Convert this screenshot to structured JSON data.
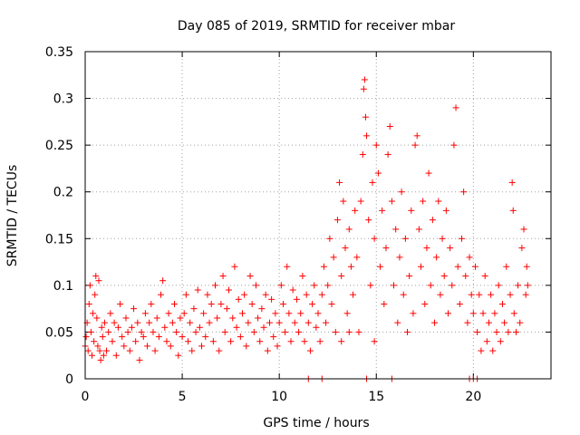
{
  "chart_data": {
    "type": "scatter",
    "title": "Day 085 of 2019, SRMTID for receiver mbar",
    "xlabel": "GPS time / hours",
    "ylabel": "SRMTID / TECUs",
    "xlim": [
      0,
      24
    ],
    "ylim": [
      0,
      0.35
    ],
    "xticks": [
      0,
      5,
      10,
      15,
      20
    ],
    "xtick_labels": [
      "0",
      "5",
      "10",
      "15",
      "20"
    ],
    "yticks": [
      0,
      0.05,
      0.1,
      0.15,
      0.2,
      0.25,
      0.3,
      0.35
    ],
    "ytick_labels": [
      "0",
      "0.05",
      "0.1",
      "0.15",
      "0.2",
      "0.25",
      "0.3",
      "0.35"
    ],
    "grid": true,
    "marker": "+",
    "color": "#ff0000",
    "series": [
      {
        "name": "SRMTID",
        "points": [
          [
            0.0,
            0.035
          ],
          [
            0.05,
            0.045
          ],
          [
            0.1,
            0.06
          ],
          [
            0.15,
            0.03
          ],
          [
            0.2,
            0.08
          ],
          [
            0.25,
            0.1
          ],
          [
            0.3,
            0.05
          ],
          [
            0.35,
            0.025
          ],
          [
            0.4,
            0.07
          ],
          [
            0.45,
            0.04
          ],
          [
            0.5,
            0.09
          ],
          [
            0.55,
            0.11
          ],
          [
            0.6,
            0.065
          ],
          [
            0.65,
            0.035
          ],
          [
            0.7,
            0.105
          ],
          [
            0.75,
            0.03
          ],
          [
            0.8,
            0.02
          ],
          [
            0.85,
            0.055
          ],
          [
            0.9,
            0.045
          ],
          [
            0.95,
            0.025
          ],
          [
            1.0,
            0.06
          ],
          [
            1.1,
            0.03
          ],
          [
            1.2,
            0.05
          ],
          [
            1.3,
            0.07
          ],
          [
            1.4,
            0.04
          ],
          [
            1.5,
            0.06
          ],
          [
            1.6,
            0.025
          ],
          [
            1.7,
            0.055
          ],
          [
            1.8,
            0.08
          ],
          [
            1.9,
            0.045
          ],
          [
            2.0,
            0.035
          ],
          [
            2.1,
            0.065
          ],
          [
            2.2,
            0.05
          ],
          [
            2.3,
            0.03
          ],
          [
            2.4,
            0.055
          ],
          [
            2.5,
            0.075
          ],
          [
            2.6,
            0.04
          ],
          [
            2.7,
            0.06
          ],
          [
            2.8,
            0.02
          ],
          [
            2.9,
            0.05
          ],
          [
            3.0,
            0.045
          ],
          [
            3.1,
            0.07
          ],
          [
            3.2,
            0.035
          ],
          [
            3.3,
            0.06
          ],
          [
            3.4,
            0.08
          ],
          [
            3.5,
            0.05
          ],
          [
            3.6,
            0.03
          ],
          [
            3.7,
            0.065
          ],
          [
            3.8,
            0.045
          ],
          [
            3.9,
            0.09
          ],
          [
            4.0,
            0.105
          ],
          [
            4.1,
            0.055
          ],
          [
            4.2,
            0.04
          ],
          [
            4.3,
            0.07
          ],
          [
            4.4,
            0.035
          ],
          [
            4.5,
            0.06
          ],
          [
            4.6,
            0.08
          ],
          [
            4.7,
            0.05
          ],
          [
            4.8,
            0.025
          ],
          [
            4.9,
            0.065
          ],
          [
            5.0,
            0.045
          ],
          [
            5.1,
            0.07
          ],
          [
            5.2,
            0.09
          ],
          [
            5.3,
            0.04
          ],
          [
            5.4,
            0.06
          ],
          [
            5.5,
            0.03
          ],
          [
            5.6,
            0.075
          ],
          [
            5.7,
            0.05
          ],
          [
            5.8,
            0.095
          ],
          [
            5.9,
            0.055
          ],
          [
            6.0,
            0.035
          ],
          [
            6.1,
            0.07
          ],
          [
            6.2,
            0.045
          ],
          [
            6.3,
            0.09
          ],
          [
            6.4,
            0.06
          ],
          [
            6.5,
            0.08
          ],
          [
            6.6,
            0.04
          ],
          [
            6.7,
            0.1
          ],
          [
            6.8,
            0.065
          ],
          [
            6.9,
            0.03
          ],
          [
            7.0,
            0.08
          ],
          [
            7.1,
            0.11
          ],
          [
            7.2,
            0.05
          ],
          [
            7.3,
            0.075
          ],
          [
            7.4,
            0.095
          ],
          [
            7.5,
            0.04
          ],
          [
            7.6,
            0.065
          ],
          [
            7.7,
            0.12
          ],
          [
            7.8,
            0.055
          ],
          [
            7.9,
            0.085
          ],
          [
            8.0,
            0.045
          ],
          [
            8.1,
            0.07
          ],
          [
            8.2,
            0.09
          ],
          [
            8.3,
            0.035
          ],
          [
            8.4,
            0.06
          ],
          [
            8.5,
            0.11
          ],
          [
            8.6,
            0.08
          ],
          [
            8.7,
            0.05
          ],
          [
            8.8,
            0.1
          ],
          [
            8.9,
            0.065
          ],
          [
            9.0,
            0.04
          ],
          [
            9.1,
            0.075
          ],
          [
            9.2,
            0.055
          ],
          [
            9.3,
            0.09
          ],
          [
            9.4,
            0.03
          ],
          [
            9.5,
            0.06
          ],
          [
            9.6,
            0.085
          ],
          [
            9.7,
            0.045
          ],
          [
            9.8,
            0.07
          ],
          [
            9.9,
            0.035
          ],
          [
            10.0,
            0.06
          ],
          [
            10.1,
            0.1
          ],
          [
            10.2,
            0.08
          ],
          [
            10.3,
            0.05
          ],
          [
            10.4,
            0.12
          ],
          [
            10.5,
            0.07
          ],
          [
            10.6,
            0.04
          ],
          [
            10.7,
            0.095
          ],
          [
            10.8,
            0.06
          ],
          [
            10.9,
            0.085
          ],
          [
            11.0,
            0.05
          ],
          [
            11.1,
            0.07
          ],
          [
            11.2,
            0.11
          ],
          [
            11.3,
            0.04
          ],
          [
            11.4,
            0.09
          ],
          [
            11.5,
            0.06
          ],
          [
            11.6,
            0.03
          ],
          [
            11.7,
            0.08
          ],
          [
            11.8,
            0.1
          ],
          [
            11.9,
            0.055
          ],
          [
            12.0,
            0.07
          ],
          [
            12.1,
            0.04
          ],
          [
            12.2,
            0.09
          ],
          [
            12.3,
            0.12
          ],
          [
            12.4,
            0.06
          ],
          [
            12.5,
            0.1
          ],
          [
            12.6,
            0.15
          ],
          [
            12.7,
            0.08
          ],
          [
            12.8,
            0.13
          ],
          [
            12.9,
            0.05
          ],
          [
            13.0,
            0.17
          ],
          [
            13.1,
            0.21
          ],
          [
            13.2,
            0.11
          ],
          [
            13.3,
            0.19
          ],
          [
            13.4,
            0.14
          ],
          [
            13.5,
            0.07
          ],
          [
            13.6,
            0.16
          ],
          [
            13.7,
            0.12
          ],
          [
            13.8,
            0.09
          ],
          [
            13.9,
            0.18
          ],
          [
            14.0,
            0.13
          ],
          [
            14.1,
            0.05
          ],
          [
            14.2,
            0.19
          ],
          [
            14.3,
            0.24
          ],
          [
            14.35,
            0.31
          ],
          [
            14.4,
            0.32
          ],
          [
            14.45,
            0.28
          ],
          [
            14.5,
            0.26
          ],
          [
            14.6,
            0.17
          ],
          [
            14.7,
            0.1
          ],
          [
            14.8,
            0.21
          ],
          [
            14.9,
            0.15
          ],
          [
            15.0,
            0.25
          ],
          [
            15.1,
            0.22
          ],
          [
            15.2,
            0.12
          ],
          [
            15.3,
            0.18
          ],
          [
            15.4,
            0.08
          ],
          [
            15.5,
            0.14
          ],
          [
            15.6,
            0.24
          ],
          [
            15.7,
            0.27
          ],
          [
            15.8,
            0.19
          ],
          [
            15.9,
            0.1
          ],
          [
            16.0,
            0.16
          ],
          [
            16.1,
            0.06
          ],
          [
            16.2,
            0.13
          ],
          [
            16.3,
            0.2
          ],
          [
            16.4,
            0.09
          ],
          [
            16.5,
            0.15
          ],
          [
            16.6,
            0.05
          ],
          [
            16.7,
            0.11
          ],
          [
            16.8,
            0.18
          ],
          [
            16.9,
            0.07
          ],
          [
            17.0,
            0.25
          ],
          [
            17.1,
            0.26
          ],
          [
            17.2,
            0.16
          ],
          [
            17.3,
            0.12
          ],
          [
            17.4,
            0.19
          ],
          [
            17.5,
            0.08
          ],
          [
            17.6,
            0.14
          ],
          [
            17.7,
            0.22
          ],
          [
            17.8,
            0.1
          ],
          [
            17.9,
            0.17
          ],
          [
            18.0,
            0.06
          ],
          [
            18.1,
            0.13
          ],
          [
            18.2,
            0.19
          ],
          [
            18.3,
            0.09
          ],
          [
            18.4,
            0.15
          ],
          [
            18.5,
            0.11
          ],
          [
            18.6,
            0.18
          ],
          [
            18.7,
            0.07
          ],
          [
            18.8,
            0.14
          ],
          [
            18.9,
            0.1
          ],
          [
            19.0,
            0.25
          ],
          [
            19.1,
            0.29
          ],
          [
            19.2,
            0.12
          ],
          [
            19.3,
            0.08
          ],
          [
            19.4,
            0.15
          ],
          [
            19.5,
            0.2
          ],
          [
            19.6,
            0.11
          ],
          [
            19.7,
            0.06
          ],
          [
            19.8,
            0.13
          ],
          [
            19.9,
            0.09
          ],
          [
            20.0,
            0.07
          ],
          [
            20.1,
            0.12
          ],
          [
            20.2,
            0.05
          ],
          [
            20.3,
            0.09
          ],
          [
            20.4,
            0.03
          ],
          [
            20.5,
            0.07
          ],
          [
            20.6,
            0.11
          ],
          [
            20.7,
            0.04
          ],
          [
            20.8,
            0.06
          ],
          [
            20.9,
            0.09
          ],
          [
            21.0,
            0.03
          ],
          [
            21.1,
            0.07
          ],
          [
            21.2,
            0.05
          ],
          [
            21.3,
            0.1
          ],
          [
            21.4,
            0.04
          ],
          [
            21.5,
            0.08
          ],
          [
            21.6,
            0.06
          ],
          [
            21.7,
            0.12
          ],
          [
            21.8,
            0.05
          ],
          [
            21.9,
            0.09
          ],
          [
            22.0,
            0.21
          ],
          [
            22.05,
            0.18
          ],
          [
            22.1,
            0.07
          ],
          [
            22.2,
            0.05
          ],
          [
            22.3,
            0.1
          ],
          [
            22.4,
            0.06
          ],
          [
            22.5,
            0.14
          ],
          [
            22.6,
            0.16
          ],
          [
            22.7,
            0.09
          ],
          [
            22.75,
            0.12
          ],
          [
            22.8,
            0.1
          ],
          [
            13.2,
            0.04
          ],
          [
            14.5,
            0.0
          ],
          [
            15.8,
            0.0
          ],
          [
            19.8,
            0.0
          ],
          [
            20.0,
            0.0
          ],
          [
            20.2,
            0.0
          ],
          [
            11.5,
            0.0
          ],
          [
            12.2,
            0.0
          ],
          [
            14.9,
            0.04
          ],
          [
            13.6,
            0.05
          ]
        ]
      }
    ]
  }
}
